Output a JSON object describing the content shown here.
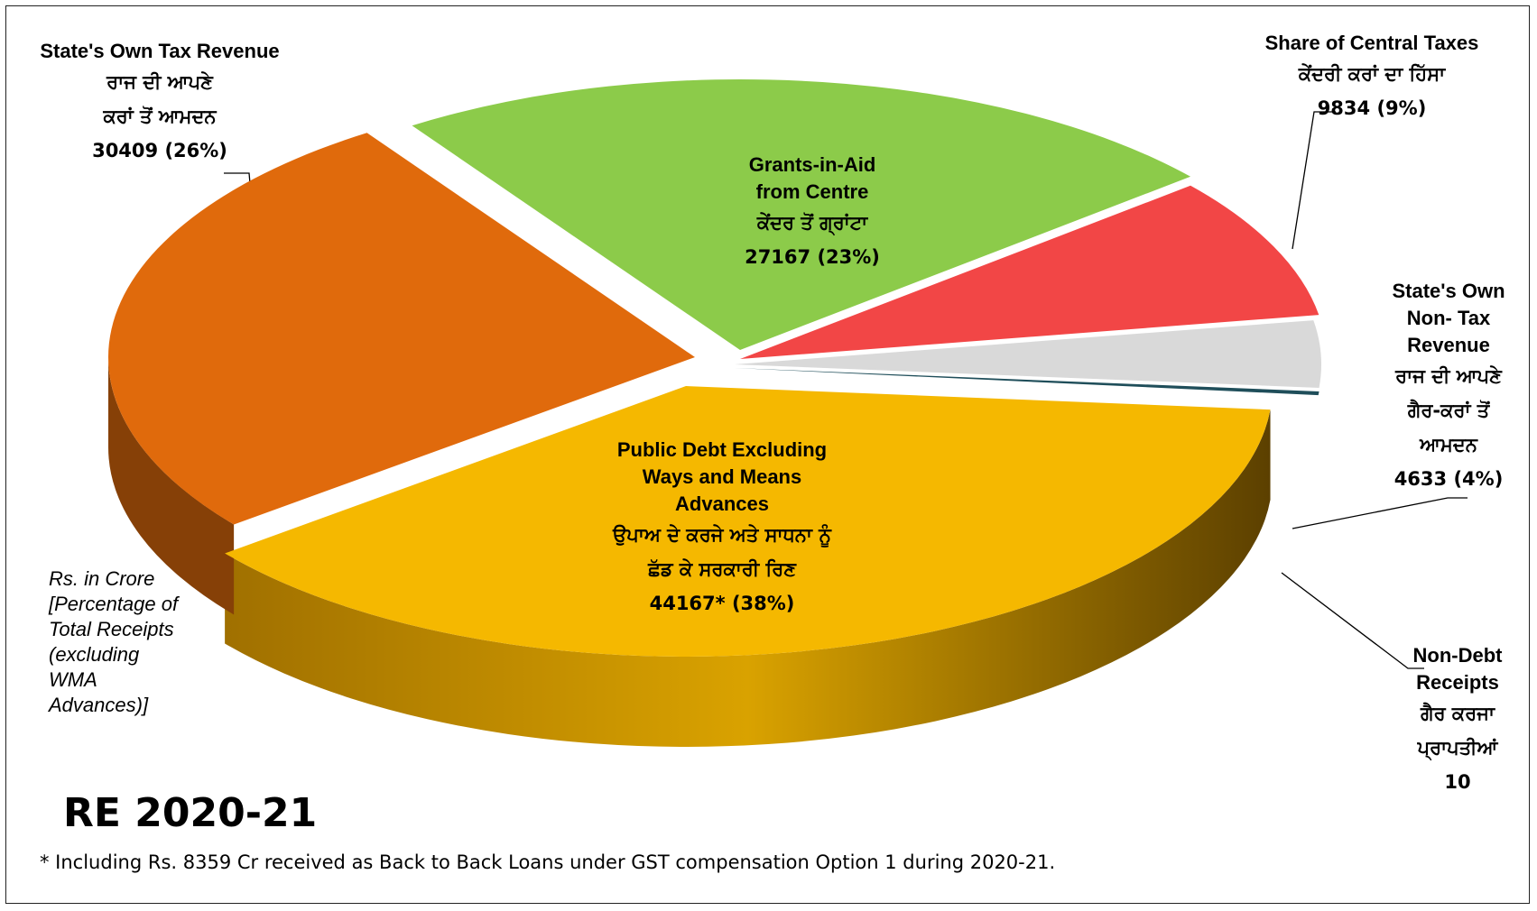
{
  "chart_data": {
    "type": "pie",
    "variant": "3d-exploded",
    "unit_note": [
      "Rs. in Crore",
      "[Percentage of",
      "Total Receipts",
      "(excluding",
      "WMA",
      "Advances)]"
    ],
    "title": "RE 2020-21",
    "footnote": "* Including Rs. 8359 Cr received as Back to Back Loans under GST compensation Option 1 during 2020-21.",
    "slices": [
      {
        "key": "public_debt",
        "label_en": [
          "Public Debt Excluding",
          "Ways and Means",
          "Advances"
        ],
        "label_pa": [
          "ਉਪਾਅ ਦੇ ਕਰਜੇ ਅਤੇ ਸਾਧਨਾ ਨੂੰ",
          "ਛੱਡ ਕੇ ਸਰਕਾਰੀ ਰਿਣ"
        ],
        "value": 44167,
        "value_label": "44167* (38%)",
        "percent": 38,
        "color": "#F5B800"
      },
      {
        "key": "own_tax",
        "label_en": [
          "State's Own Tax Revenue"
        ],
        "label_pa": [
          "ਰਾਜ ਦੀ ਆਪਣੇ",
          "ਕਰਾਂ ਤੋਂ ਆਮਦਨ"
        ],
        "value": 30409,
        "value_label": "30409 (26%)",
        "percent": 26,
        "color": "#E06A0C"
      },
      {
        "key": "grants",
        "label_en": [
          "Grants-in-Aid",
          "from Centre"
        ],
        "label_pa": [
          "ਕੇਂਦਰ ਤੋਂ ਗ੍ਰਾਂਟਾ"
        ],
        "value": 27167,
        "value_label": "27167 (23%)",
        "percent": 23,
        "color": "#8CCB4A"
      },
      {
        "key": "central_taxes",
        "label_en": [
          "Share of Central Taxes"
        ],
        "label_pa": [
          "ਕੇਂਦਰੀ ਕਰਾਂ ਦਾ ਹਿੱਸਾ"
        ],
        "value": 9834,
        "value_label": "9834 (9%)",
        "percent": 9,
        "color": "#F24646"
      },
      {
        "key": "non_tax",
        "label_en": [
          "State's Own",
          "Non- Tax",
          "Revenue"
        ],
        "label_pa": [
          "ਰਾਜ ਦੀ ਆਪਣੇ",
          "ਗੈਰ-ਕਰਾਂ ਤੋਂ",
          "ਆਮਦਨ"
        ],
        "value": 4633,
        "value_label": "4633 (4%)",
        "percent": 4,
        "color": "#D9D9D9"
      },
      {
        "key": "non_debt",
        "label_en": [
          "Non-Debt",
          "Receipts"
        ],
        "label_pa": [
          "ਗੈਰ ਕਰਜਾ",
          "ਪ੍ਰਾਪਤੀਆਂ"
        ],
        "value": 10,
        "value_label": "10",
        "percent": 0,
        "color": "#1F4E5A"
      }
    ]
  }
}
